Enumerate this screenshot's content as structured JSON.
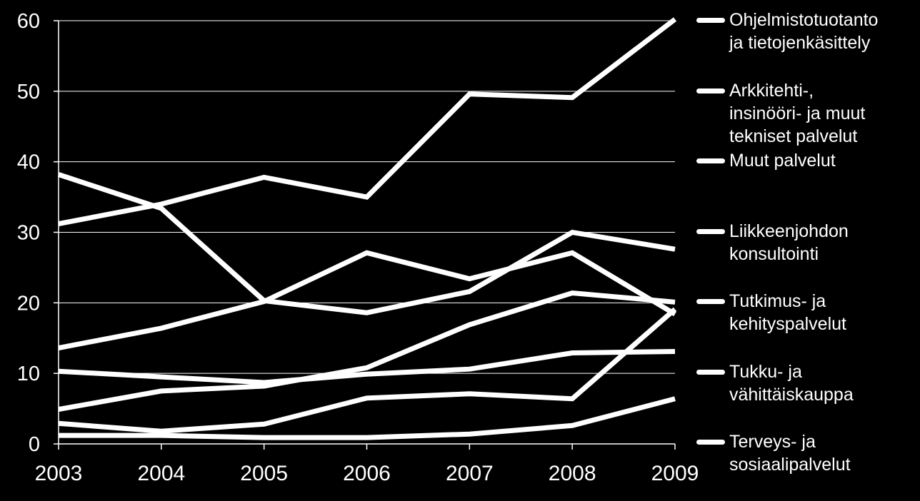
{
  "chart_data": {
    "type": "line",
    "title": "",
    "xlabel": "",
    "ylabel": "",
    "x": [
      "2003",
      "2004",
      "2005",
      "2006",
      "2007",
      "2008",
      "2009"
    ],
    "ylim": [
      0,
      60
    ],
    "yticks": [
      "0",
      "10",
      "20",
      "30",
      "40",
      "50",
      "60"
    ],
    "grid": true,
    "legend_position": "right",
    "colors": {
      "background": "#000000",
      "line": "#ffffff",
      "grid": "#ffffff",
      "text": "#ffffff"
    },
    "series": [
      {
        "name": "Ohjelmistotuotanto\nja tietojenkäsittely",
        "values": [
          31.2,
          34,
          37.8,
          35,
          49.6,
          49.1,
          60.2
        ]
      },
      {
        "name": "Arkkitehti-,\ninsinööri- ja muut\ntekniset palvelut",
        "values": [
          38.2,
          33.4,
          20.3,
          18.6,
          21.6,
          30,
          27.6
        ]
      },
      {
        "name": "Muut palvelut",
        "values": [
          13.6,
          16.4,
          20.2,
          27.1,
          23.4,
          27.1,
          18.4
        ]
      },
      {
        "name": "Liikkeenjohdon\nkonsultointi",
        "values": [
          4.9,
          7.5,
          8.2,
          10.8,
          16.9,
          21.4,
          20.1
        ]
      },
      {
        "name": "Tutkimus- ja\nkehityspalvelut",
        "values": [
          10.3,
          9.5,
          8.7,
          9.9,
          10.6,
          12.9,
          13.1
        ]
      },
      {
        "name": "Tukku- ja\nvähittäiskauppa",
        "values": [
          2.9,
          1.8,
          2.8,
          6.5,
          7.1,
          6.4,
          19.1
        ]
      },
      {
        "name": "Terveys- ja\nsosiaalipalvelut",
        "values": [
          1.2,
          1.2,
          0.9,
          0.9,
          1.4,
          2.6,
          6.4
        ]
      }
    ]
  }
}
